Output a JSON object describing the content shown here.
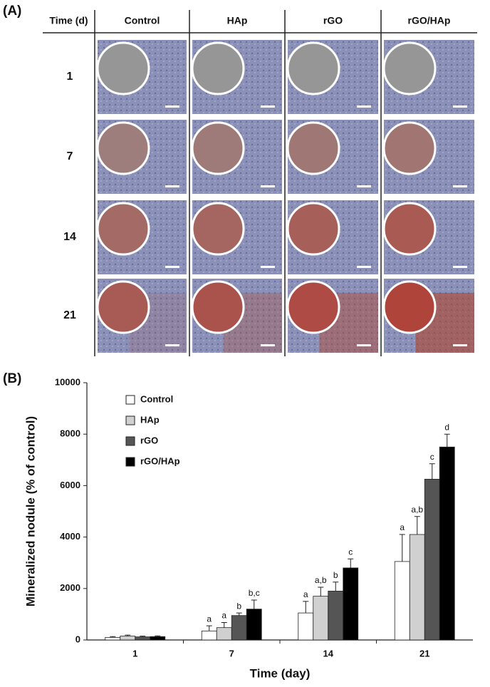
{
  "panel_a": {
    "label": "(A)",
    "header": [
      "Time (d)",
      "Control",
      "HAp",
      "rGO",
      "rGO/HAp"
    ],
    "rows": [
      "1",
      "7",
      "14",
      "21"
    ]
  },
  "chart_data": {
    "type": "bar",
    "panel_label": "(B)",
    "x_label": "Time (day)",
    "y_label": "Mineralized nodule (% of control)",
    "categories": [
      "1",
      "7",
      "14",
      "21"
    ],
    "series": [
      {
        "name": "Control",
        "color": "#ffffff",
        "values": [
          100,
          350,
          1050,
          3050
        ],
        "errors": [
          30,
          200,
          450,
          1050
        ],
        "letters": [
          null,
          "a",
          "a",
          "a"
        ]
      },
      {
        "name": "HAp",
        "color": "#d0d0d0",
        "values": [
          150,
          480,
          1700,
          4100
        ],
        "errors": [
          40,
          200,
          350,
          700
        ],
        "letters": [
          null,
          "a",
          "a,b",
          "a,b"
        ]
      },
      {
        "name": "rGO",
        "color": "#555555",
        "values": [
          120,
          950,
          1900,
          6250
        ],
        "errors": [
          30,
          100,
          350,
          600
        ],
        "letters": [
          null,
          "b",
          "b",
          "c"
        ]
      },
      {
        "name": "rGO/HAp",
        "color": "#000000",
        "values": [
          130,
          1200,
          2800,
          7500
        ],
        "errors": [
          30,
          350,
          350,
          500
        ],
        "letters": [
          null,
          "b,c",
          "c",
          "d"
        ]
      }
    ],
    "ylim": [
      0,
      10000
    ],
    "yticks": [
      0,
      2000,
      4000,
      6000,
      8000,
      10000
    ],
    "legend": "upper-left"
  }
}
